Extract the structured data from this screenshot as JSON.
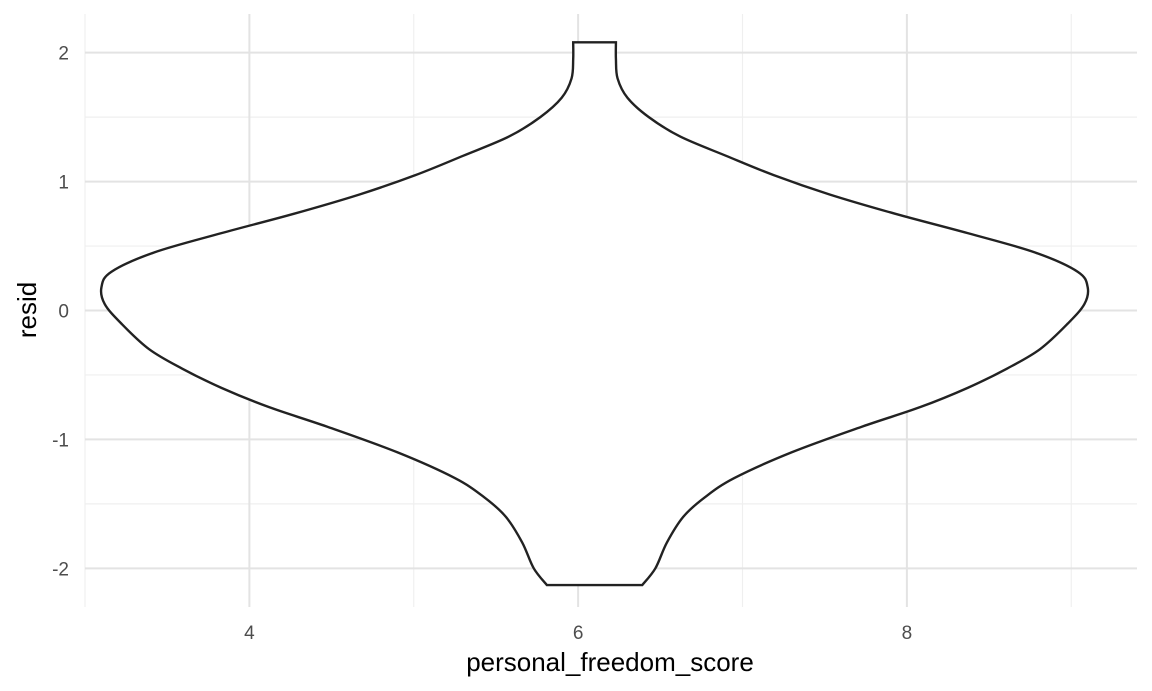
{
  "chart_data": {
    "type": "violin",
    "xlabel": "personal_freedom_score",
    "ylabel": "resid",
    "xlim": [
      3.0,
      9.4
    ],
    "ylim": [
      -2.3,
      2.3
    ],
    "x_ticks": [
      {
        "value": 4,
        "label": "4"
      },
      {
        "value": 6,
        "label": "6"
      },
      {
        "value": 8,
        "label": "8"
      }
    ],
    "y_ticks": [
      {
        "value": 2,
        "label": "2"
      },
      {
        "value": 1,
        "label": "1"
      },
      {
        "value": 0,
        "label": "0"
      },
      {
        "value": -1,
        "label": "-1"
      },
      {
        "value": -2,
        "label": "-2"
      }
    ],
    "grid": true,
    "violin": {
      "center_x": 6.1,
      "y_min": -2.13,
      "y_max": 2.08,
      "profile": [
        {
          "y": -2.13,
          "half_width": 0.29
        },
        {
          "y": -2.0,
          "half_width": 0.37
        },
        {
          "y": -1.8,
          "half_width": 0.44
        },
        {
          "y": -1.6,
          "half_width": 0.54
        },
        {
          "y": -1.45,
          "half_width": 0.67
        },
        {
          "y": -1.3,
          "half_width": 0.85
        },
        {
          "y": -1.1,
          "half_width": 1.2
        },
        {
          "y": -0.9,
          "half_width": 1.63
        },
        {
          "y": -0.75,
          "half_width": 1.98
        },
        {
          "y": -0.6,
          "half_width": 2.27
        },
        {
          "y": -0.45,
          "half_width": 2.51
        },
        {
          "y": -0.3,
          "half_width": 2.71
        },
        {
          "y": -0.1,
          "half_width": 2.88
        },
        {
          "y": 0.05,
          "half_width": 2.98
        },
        {
          "y": 0.18,
          "half_width": 3.0
        },
        {
          "y": 0.3,
          "half_width": 2.94
        },
        {
          "y": 0.45,
          "half_width": 2.68
        },
        {
          "y": 0.6,
          "half_width": 2.27
        },
        {
          "y": 0.75,
          "half_width": 1.83
        },
        {
          "y": 0.9,
          "half_width": 1.43
        },
        {
          "y": 1.05,
          "half_width": 1.09
        },
        {
          "y": 1.2,
          "half_width": 0.8
        },
        {
          "y": 1.35,
          "half_width": 0.52
        },
        {
          "y": 1.5,
          "half_width": 0.33
        },
        {
          "y": 1.65,
          "half_width": 0.2
        },
        {
          "y": 1.8,
          "half_width": 0.14
        },
        {
          "y": 1.95,
          "half_width": 0.13
        },
        {
          "y": 2.08,
          "half_width": 0.13
        }
      ]
    }
  }
}
